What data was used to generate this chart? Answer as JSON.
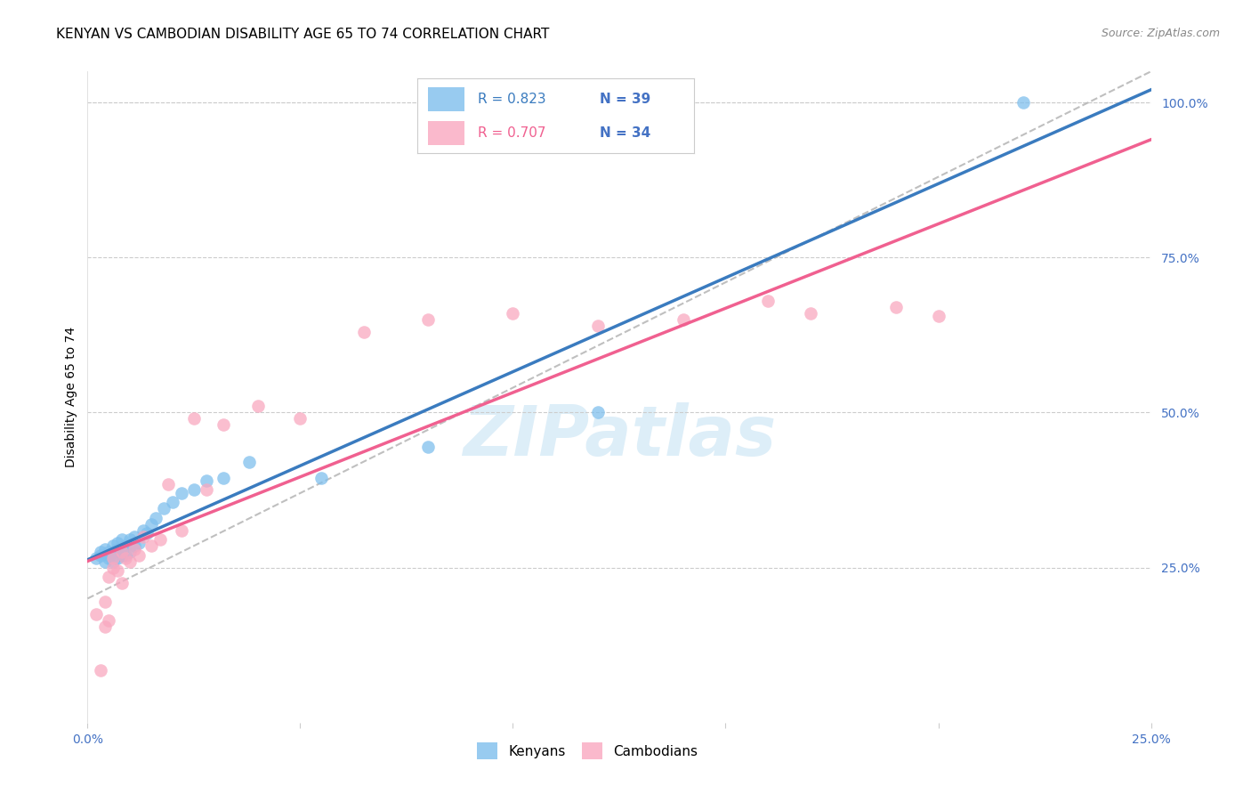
{
  "title": "KENYAN VS CAMBODIAN DISABILITY AGE 65 TO 74 CORRELATION CHART",
  "source": "Source: ZipAtlas.com",
  "ylabel": "Disability Age 65 to 74",
  "xlim": [
    0.0,
    0.25
  ],
  "ylim": [
    0.0,
    1.05
  ],
  "blue_R": 0.823,
  "blue_N": 39,
  "pink_R": 0.707,
  "pink_N": 34,
  "blue_color": "#7fbfed",
  "pink_color": "#f9a8c0",
  "blue_line_color": "#3a7bbf",
  "pink_line_color": "#f06090",
  "axis_color": "#4472c4",
  "grid_color": "#cccccc",
  "background_color": "#ffffff",
  "watermark": "ZIPatlas",
  "watermark_color": "#ddeef8",
  "blue_scatter_x": [
    0.002,
    0.003,
    0.003,
    0.004,
    0.004,
    0.005,
    0.005,
    0.005,
    0.006,
    0.006,
    0.006,
    0.007,
    0.007,
    0.007,
    0.008,
    0.008,
    0.008,
    0.009,
    0.009,
    0.01,
    0.01,
    0.011,
    0.011,
    0.012,
    0.013,
    0.014,
    0.015,
    0.016,
    0.018,
    0.02,
    0.022,
    0.025,
    0.028,
    0.032,
    0.038,
    0.055,
    0.08,
    0.12,
    0.22
  ],
  "blue_scatter_y": [
    0.265,
    0.27,
    0.275,
    0.26,
    0.28,
    0.265,
    0.27,
    0.275,
    0.26,
    0.275,
    0.285,
    0.265,
    0.28,
    0.29,
    0.27,
    0.28,
    0.295,
    0.27,
    0.285,
    0.275,
    0.295,
    0.285,
    0.3,
    0.29,
    0.31,
    0.305,
    0.32,
    0.33,
    0.345,
    0.355,
    0.37,
    0.375,
    0.39,
    0.395,
    0.42,
    0.395,
    0.445,
    0.5,
    1.0
  ],
  "pink_scatter_x": [
    0.002,
    0.003,
    0.004,
    0.004,
    0.005,
    0.005,
    0.006,
    0.006,
    0.007,
    0.008,
    0.008,
    0.009,
    0.01,
    0.011,
    0.012,
    0.013,
    0.015,
    0.017,
    0.019,
    0.022,
    0.025,
    0.028,
    0.032,
    0.04,
    0.05,
    0.065,
    0.08,
    0.1,
    0.12,
    0.14,
    0.16,
    0.17,
    0.19,
    0.2
  ],
  "pink_scatter_y": [
    0.175,
    0.085,
    0.155,
    0.195,
    0.165,
    0.235,
    0.25,
    0.265,
    0.245,
    0.225,
    0.275,
    0.265,
    0.26,
    0.28,
    0.27,
    0.3,
    0.285,
    0.295,
    0.385,
    0.31,
    0.49,
    0.375,
    0.48,
    0.51,
    0.49,
    0.63,
    0.65,
    0.66,
    0.64,
    0.65,
    0.68,
    0.66,
    0.67,
    0.655
  ],
  "title_fontsize": 11,
  "label_fontsize": 10,
  "tick_fontsize": 10,
  "source_fontsize": 9
}
